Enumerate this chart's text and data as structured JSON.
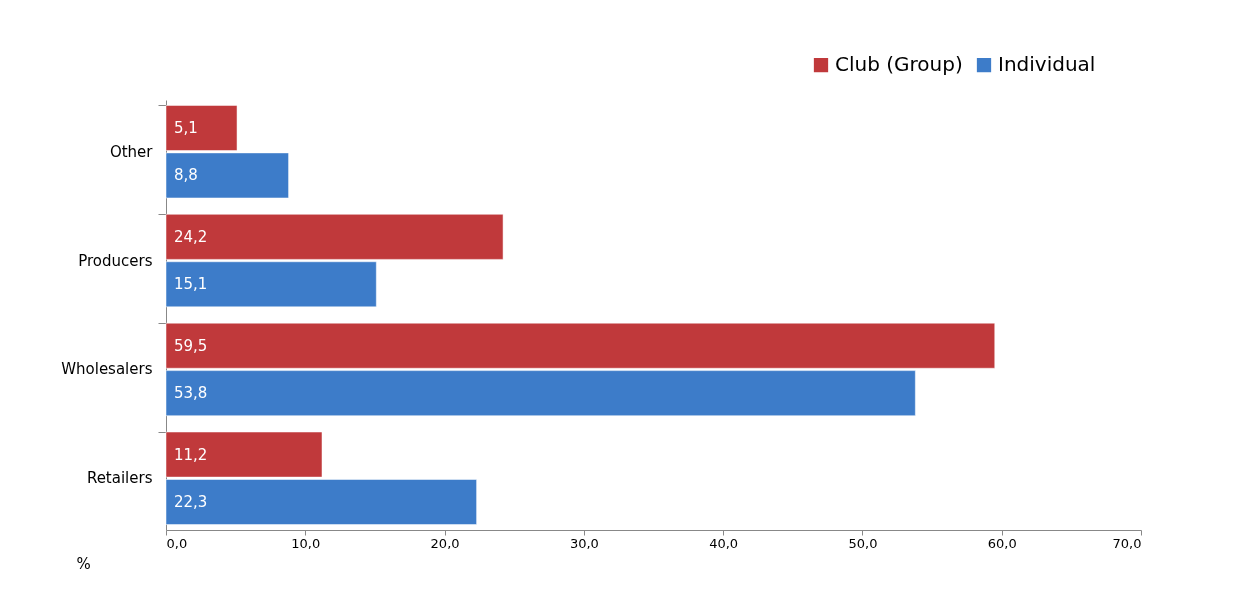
{
  "chart_data": {
    "type": "bar",
    "orientation": "horizontal",
    "xlabel": "%",
    "categories": [
      "Other",
      "Producers",
      "Wholesalers",
      "Retailers"
    ],
    "series": [
      {
        "name": "Club (Group)",
        "color": "#c0393b",
        "values": [
          5.1,
          24.2,
          59.5,
          11.2
        ],
        "value_labels": [
          "5,1",
          "24,2",
          "59,5",
          "11,2"
        ]
      },
      {
        "name": "Individual",
        "color": "#3d7cc9",
        "values": [
          8.8,
          15.1,
          53.8,
          22.3
        ],
        "value_labels": [
          "8,8",
          "15,1",
          "53,8",
          "22,3"
        ]
      }
    ],
    "xlim": [
      0,
      70
    ],
    "xticks": [
      {
        "value": 0,
        "label": "0,0"
      },
      {
        "value": 10,
        "label": "10,0"
      },
      {
        "value": 20,
        "label": "20,0"
      },
      {
        "value": 30,
        "label": "30,0"
      },
      {
        "value": 40,
        "label": "40,0"
      },
      {
        "value": 50,
        "label": "50,0"
      },
      {
        "value": 60,
        "label": "60,0"
      },
      {
        "value": 70,
        "label": "70,0"
      }
    ],
    "grid": false,
    "legend": "top right"
  }
}
